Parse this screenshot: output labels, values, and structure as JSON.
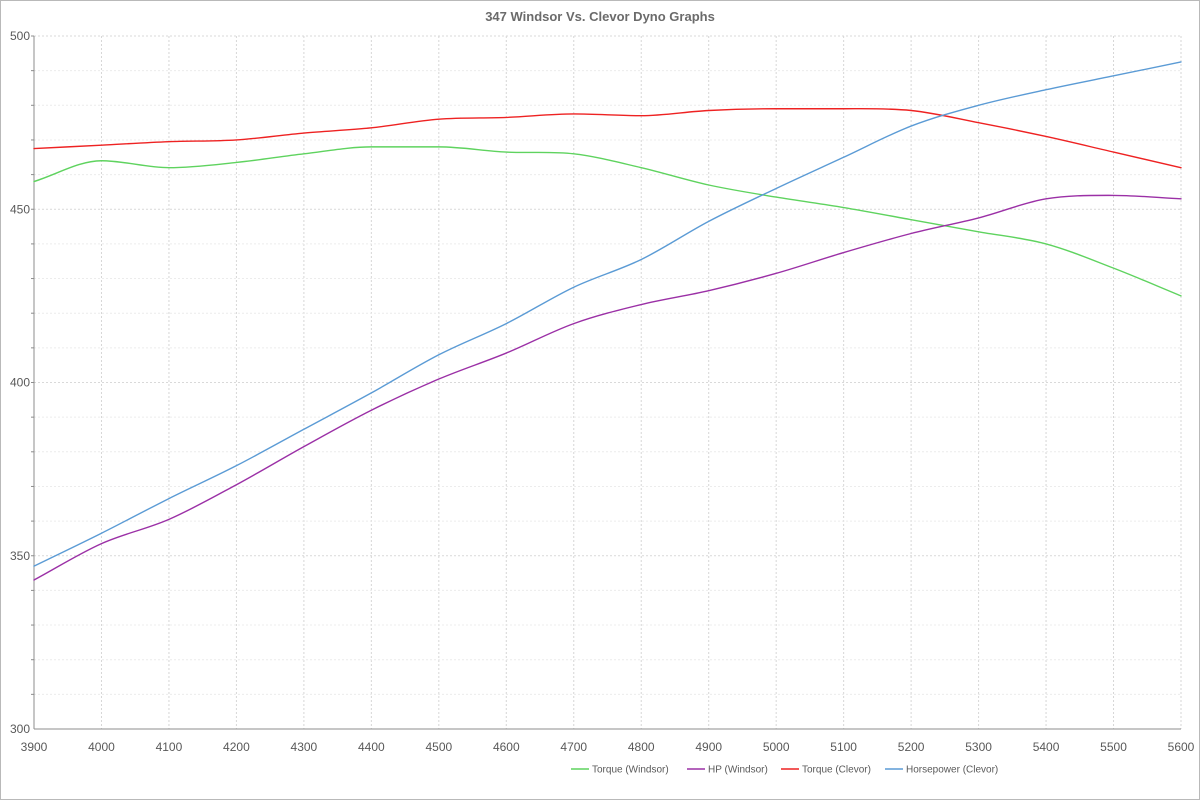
{
  "chart_data": {
    "type": "line",
    "title": "347 Windsor Vs. Clevor Dyno Graphs",
    "xlabel": "",
    "ylabel": "",
    "x": [
      3900,
      4000,
      4100,
      4200,
      4300,
      4400,
      4500,
      4600,
      4700,
      4800,
      4900,
      5000,
      5100,
      5200,
      5300,
      5400,
      5500,
      5600
    ],
    "x_ticks": [
      "3900",
      "4000",
      "4100",
      "4200",
      "4300",
      "4400",
      "4500",
      "4600",
      "4700",
      "4800",
      "4900",
      "5000",
      "5100",
      "5200",
      "5300",
      "5400",
      "5500",
      "5600"
    ],
    "ylim": [
      300,
      500
    ],
    "y_ticks": [
      "300",
      "350",
      "400",
      "450",
      "500"
    ],
    "grid": true,
    "legend_position": "bottom",
    "series": [
      {
        "name": "Torque (Windsor)",
        "color": "#5fd35f",
        "values": [
          458,
          464,
          462,
          463.5,
          466,
          468,
          468,
          466.5,
          466,
          462,
          457,
          453.5,
          450.5,
          447,
          443.5,
          440,
          433,
          425
        ]
      },
      {
        "name": "HP (Windsor)",
        "color": "#9b30a6",
        "values": [
          343,
          353.5,
          360.5,
          370.5,
          381.5,
          392,
          401,
          408.5,
          417,
          422.5,
          426.5,
          431.5,
          437.5,
          443,
          447.5,
          453,
          454,
          453
        ]
      },
      {
        "name": "Torque (Clevor)",
        "color": "#ee2222",
        "values": [
          467.5,
          468.5,
          469.5,
          470,
          472,
          473.5,
          476,
          476.5,
          477.5,
          477,
          478.5,
          479,
          479,
          478.5,
          475,
          471,
          466.5,
          462
        ]
      },
      {
        "name": "Horsepower (Clevor)",
        "color": "#5b9bd5",
        "values": [
          347,
          356.5,
          366.5,
          376,
          386.5,
          397,
          408,
          417,
          427.5,
          435.5,
          446.5,
          456,
          465,
          474,
          480,
          484.5,
          488.5,
          492.5
        ]
      }
    ]
  }
}
